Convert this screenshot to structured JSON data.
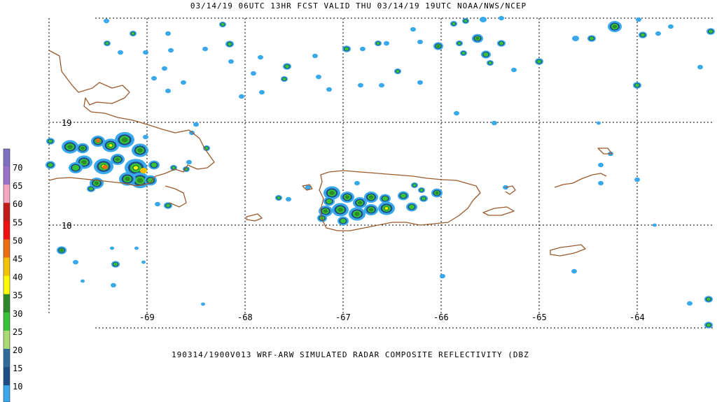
{
  "header": {
    "title": "03/14/19 06UTC 13HR FCST VALID THU 03/14/19 19UTC NOAA/NWS/NCEP"
  },
  "footer": {
    "caption": "190314/1900V013 WRF-ARW SIMULATED RADAR COMPOSITE REFLECTIVITY (DBZ"
  },
  "map": {
    "longitude_labels": [
      "-69",
      "-68",
      "-67",
      "-66",
      "-65",
      "-64"
    ],
    "latitude_labels": [
      "19",
      "18"
    ],
    "coastline_color": "#9b5a2c",
    "grid_color": "#000000"
  },
  "legend": {
    "levels": [
      {
        "label": "70",
        "color": "#9a72c8"
      },
      {
        "label": "65",
        "color": "#f7a6c0"
      },
      {
        "label": "60",
        "color": "#c41a1a"
      },
      {
        "label": "55",
        "color": "#f01010"
      },
      {
        "label": "50",
        "color": "#f06e12"
      },
      {
        "label": "45",
        "color": "#f2c200"
      },
      {
        "label": "40",
        "color": "#fffc00"
      },
      {
        "label": "35",
        "color": "#2a8a2a"
      },
      {
        "label": "30",
        "color": "#36c436"
      },
      {
        "label": "25",
        "color": "#a8dc72"
      },
      {
        "label": "20",
        "color": "#2e6a9a"
      },
      {
        "label": "15",
        "color": "#1e4e86"
      },
      {
        "label": "10",
        "color": "#3aa8ec"
      }
    ],
    "extra_top_color": "#7f6fc4"
  }
}
